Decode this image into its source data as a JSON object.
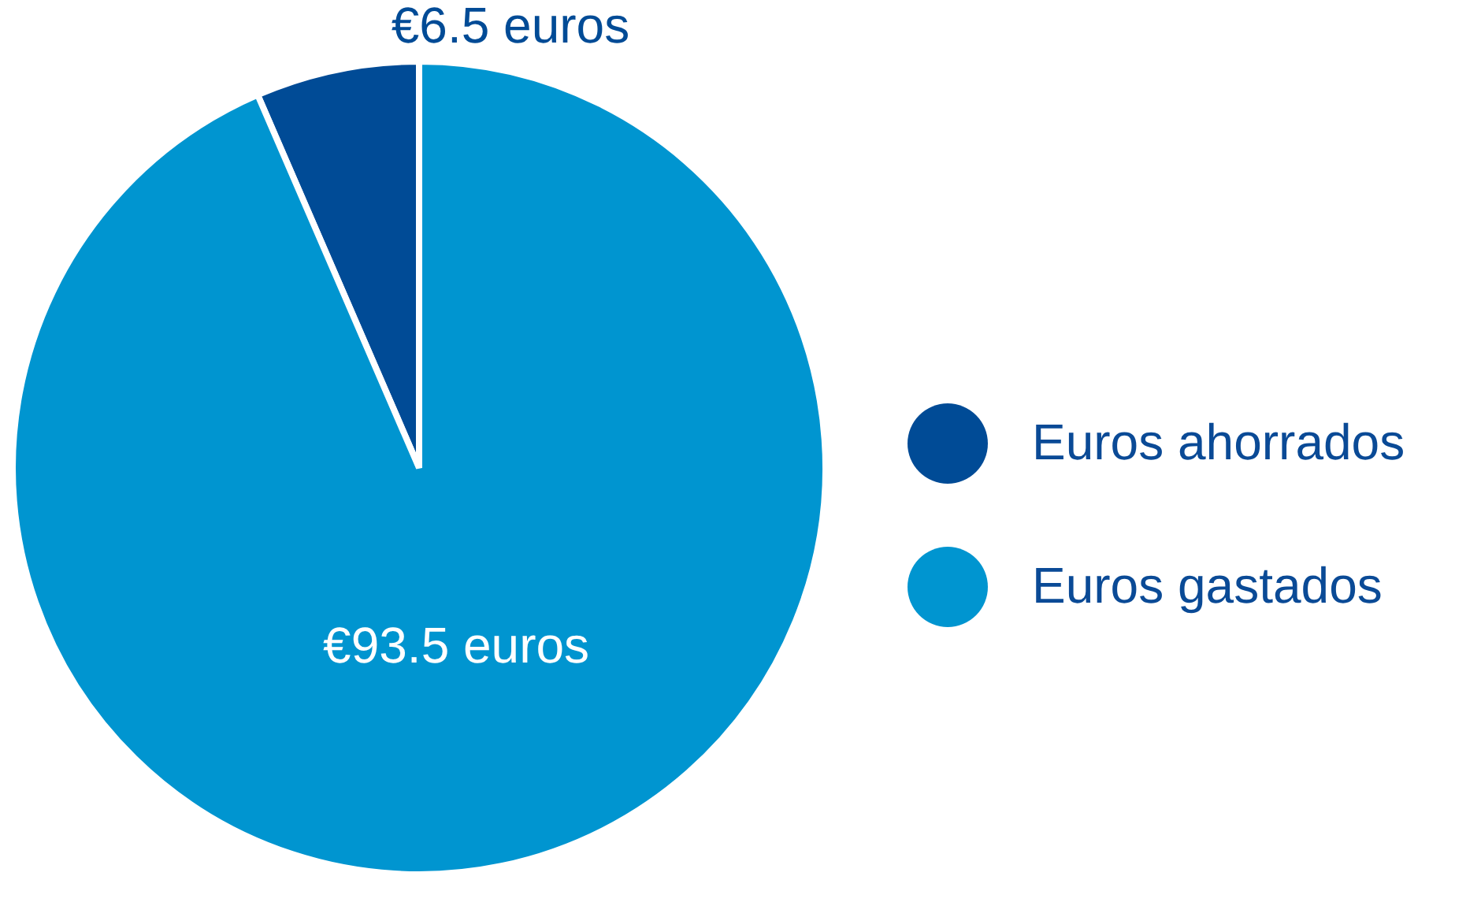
{
  "chart_data": {
    "type": "pie",
    "categories": [
      "Euros ahorrados",
      "Euros gastados"
    ],
    "values": [
      6.5,
      93.5
    ],
    "colors": [
      "#004b96",
      "#0095d0"
    ],
    "value_labels": [
      "€6.5 euros",
      "€93.5 euros"
    ],
    "legend": "right"
  }
}
